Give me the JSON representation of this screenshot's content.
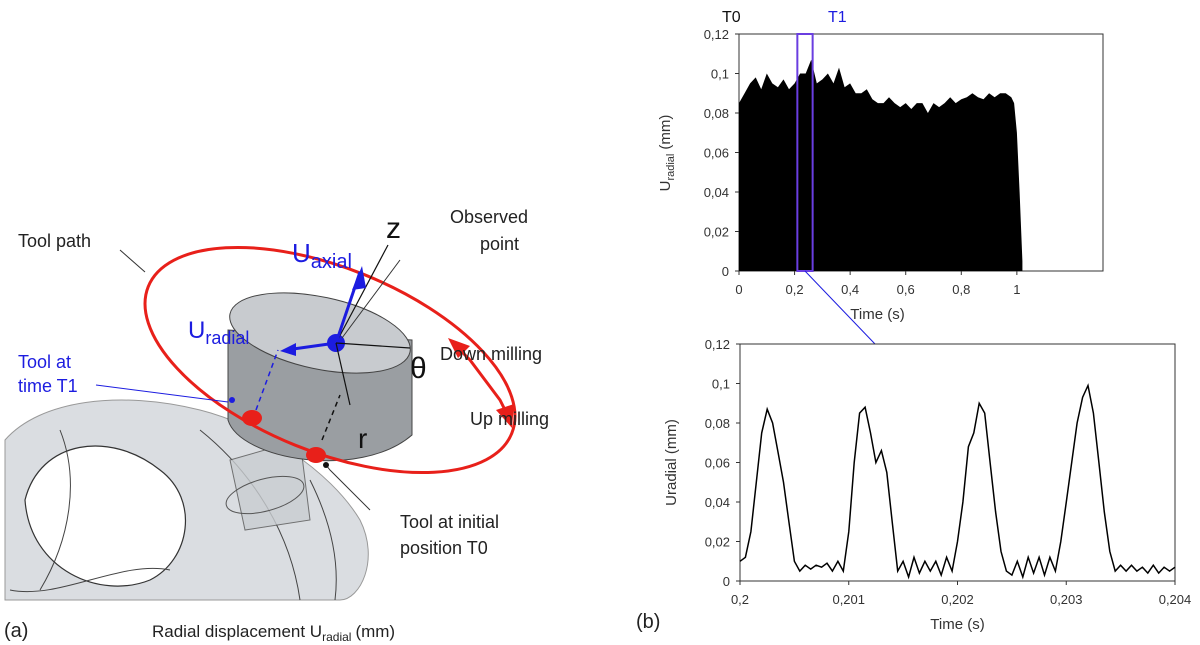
{
  "diagram": {
    "tool_path": "Tool path",
    "z": "z",
    "observed_point": [
      "Observed",
      "point"
    ],
    "u_axial": {
      "main": "U",
      "sub": "axial"
    },
    "u_radial": {
      "main": "U",
      "sub": "radial"
    },
    "tool_t1": [
      "Tool at",
      "time T1"
    ],
    "down_milling": "Down milling",
    "theta": "θ",
    "r": "r",
    "up_milling": "Up milling",
    "tool_t0": [
      "Tool at initial",
      "position T0"
    ],
    "panel_a": "(a)",
    "caption": {
      "main": "Radial displacement U",
      "sub": "radial",
      "unit": "(mm)"
    },
    "panel_b": "(b)"
  },
  "chart_data": [
    {
      "type": "area",
      "ylabel": {
        "main": "U",
        "sub": "radial",
        "unit": "(mm)"
      },
      "xlabel": "Time (s)",
      "annotations": [
        "T0",
        "T1"
      ],
      "highlight": [
        0.21,
        0.265
      ],
      "color": "#000000",
      "x": [
        0,
        0.02,
        0.04,
        0.06,
        0.08,
        0.1,
        0.12,
        0.14,
        0.16,
        0.18,
        0.2,
        0.22,
        0.24,
        0.26,
        0.28,
        0.3,
        0.32,
        0.34,
        0.36,
        0.38,
        0.4,
        0.42,
        0.44,
        0.46,
        0.48,
        0.5,
        0.52,
        0.54,
        0.56,
        0.58,
        0.6,
        0.62,
        0.64,
        0.66,
        0.68,
        0.7,
        0.72,
        0.74,
        0.76,
        0.78,
        0.8,
        0.82,
        0.84,
        0.86,
        0.88,
        0.9,
        0.92,
        0.94,
        0.96,
        0.98,
        0.99,
        1.0,
        1.01,
        1.02
      ],
      "values": [
        0.085,
        0.09,
        0.095,
        0.098,
        0.092,
        0.1,
        0.095,
        0.093,
        0.097,
        0.092,
        0.095,
        0.1,
        0.1,
        0.107,
        0.095,
        0.097,
        0.1,
        0.095,
        0.103,
        0.093,
        0.095,
        0.09,
        0.09,
        0.092,
        0.087,
        0.085,
        0.085,
        0.088,
        0.085,
        0.083,
        0.085,
        0.082,
        0.085,
        0.085,
        0.08,
        0.085,
        0.083,
        0.085,
        0.088,
        0.085,
        0.087,
        0.088,
        0.09,
        0.088,
        0.087,
        0.09,
        0.088,
        0.09,
        0.09,
        0.088,
        0.085,
        0.07,
        0.04,
        0.005
      ],
      "xlim": [
        0,
        1.31
      ],
      "ylim": [
        0,
        0.12
      ],
      "xticks": [
        0,
        {
          "value": 0.2,
          "label": "0,2"
        },
        {
          "value": 0.4,
          "label": "0,4"
        },
        {
          "value": 0.6,
          "label": "0,6"
        },
        {
          "value": 0.8,
          "label": "0,8"
        },
        1
      ],
      "yticks": [
        0,
        {
          "value": 0.02,
          "label": "0,02"
        },
        {
          "value": 0.04,
          "label": "0,04"
        },
        {
          "value": 0.06,
          "label": "0,06"
        },
        {
          "value": 0.08,
          "label": "0,08"
        },
        {
          "value": 0.1,
          "label": "0,1"
        },
        {
          "value": 0.12,
          "label": "0,12"
        }
      ]
    },
    {
      "type": "line",
      "ylabel": "Uradial (mm)",
      "xlabel": "Time (s)",
      "color": "#000000",
      "x": [
        0.2,
        0.20005,
        0.2001,
        0.20015,
        0.2002,
        0.20025,
        0.2003,
        0.20035,
        0.2004,
        0.20045,
        0.2005,
        0.20055,
        0.2006,
        0.20065,
        0.2007,
        0.20075,
        0.2008,
        0.20085,
        0.2009,
        0.20095,
        0.201,
        0.20105,
        0.2011,
        0.20115,
        0.2012,
        0.20125,
        0.2013,
        0.20135,
        0.2014,
        0.20145,
        0.2015,
        0.20155,
        0.2016,
        0.20165,
        0.2017,
        0.20175,
        0.2018,
        0.20185,
        0.2019,
        0.20195,
        0.202,
        0.20205,
        0.2021,
        0.20215,
        0.2022,
        0.20225,
        0.2023,
        0.20235,
        0.2024,
        0.20245,
        0.2025,
        0.20255,
        0.2026,
        0.20265,
        0.2027,
        0.20275,
        0.2028,
        0.20285,
        0.2029,
        0.20295,
        0.203,
        0.20305,
        0.2031,
        0.20315,
        0.2032,
        0.20325,
        0.2033,
        0.20335,
        0.2034,
        0.20345,
        0.2035,
        0.20355,
        0.2036,
        0.20365,
        0.2037,
        0.20375,
        0.2038,
        0.20385,
        0.2039,
        0.20395,
        0.204
      ],
      "values": [
        0.01,
        0.012,
        0.025,
        0.05,
        0.075,
        0.087,
        0.08,
        0.065,
        0.05,
        0.03,
        0.01,
        0.005,
        0.008,
        0.006,
        0.008,
        0.007,
        0.009,
        0.005,
        0.01,
        0.005,
        0.025,
        0.06,
        0.085,
        0.088,
        0.075,
        0.06,
        0.066,
        0.055,
        0.03,
        0.005,
        0.01,
        0.002,
        0.012,
        0.004,
        0.01,
        0.005,
        0.01,
        0.003,
        0.012,
        0.005,
        0.02,
        0.04,
        0.068,
        0.075,
        0.09,
        0.085,
        0.06,
        0.035,
        0.015,
        0.005,
        0.003,
        0.01,
        0.002,
        0.012,
        0.004,
        0.012,
        0.003,
        0.012,
        0.005,
        0.02,
        0.04,
        0.06,
        0.08,
        0.093,
        0.099,
        0.085,
        0.06,
        0.035,
        0.015,
        0.005,
        0.008,
        0.005,
        0.008,
        0.005,
        0.007,
        0.004,
        0.008,
        0.004,
        0.007,
        0.005,
        0.007
      ],
      "xlim": [
        0.2,
        0.204
      ],
      "ylim": [
        0,
        0.12
      ],
      "xticks": [
        {
          "value": 0.2,
          "label": "0,2"
        },
        {
          "value": 0.201,
          "label": "0,201"
        },
        {
          "value": 0.202,
          "label": "0,202"
        },
        {
          "value": 0.203,
          "label": "0,203"
        },
        {
          "value": 0.204,
          "label": "0,204"
        }
      ],
      "yticks": [
        0,
        {
          "value": 0.02,
          "label": "0,02"
        },
        {
          "value": 0.04,
          "label": "0,04"
        },
        {
          "value": 0.06,
          "label": "0,06"
        },
        {
          "value": 0.08,
          "label": "0,08"
        },
        {
          "value": 0.1,
          "label": "0,1"
        },
        {
          "value": 0.12,
          "label": "0,12"
        }
      ]
    }
  ]
}
